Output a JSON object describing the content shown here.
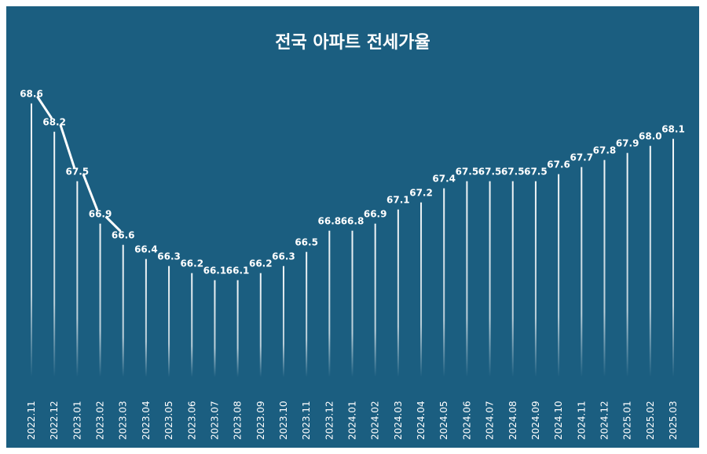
{
  "chart_data": {
    "type": "bar",
    "title": "전국 아파트 전세가율",
    "categories": [
      "2022.11",
      "2022.12",
      "2023.01",
      "2023.02",
      "2023.03",
      "2023.04",
      "2023.05",
      "2023.06",
      "2023.07",
      "2023.08",
      "2023.09",
      "2023.10",
      "2023.11",
      "2023.12",
      "2024.01",
      "2024.02",
      "2024.03",
      "2024.04",
      "2024.05",
      "2024.06",
      "2024.07",
      "2024.08",
      "2024.09",
      "2024.10",
      "2024.11",
      "2024.12",
      "2025.01",
      "2025.02",
      "2025.03"
    ],
    "values": [
      68.6,
      68.2,
      67.5,
      66.9,
      66.6,
      66.4,
      66.3,
      66.2,
      66.1,
      66.1,
      66.2,
      66.3,
      66.5,
      66.8,
      66.8,
      66.9,
      67.1,
      67.2,
      67.4,
      67.5,
      67.5,
      67.5,
      67.5,
      67.6,
      67.7,
      67.8,
      67.9,
      68.0,
      68.1
    ],
    "xlabel": "",
    "ylabel": "",
    "grid": false,
    "colors": {
      "background": "#1b5e80",
      "bars": "#ffffff",
      "text": "#ffffff"
    }
  }
}
